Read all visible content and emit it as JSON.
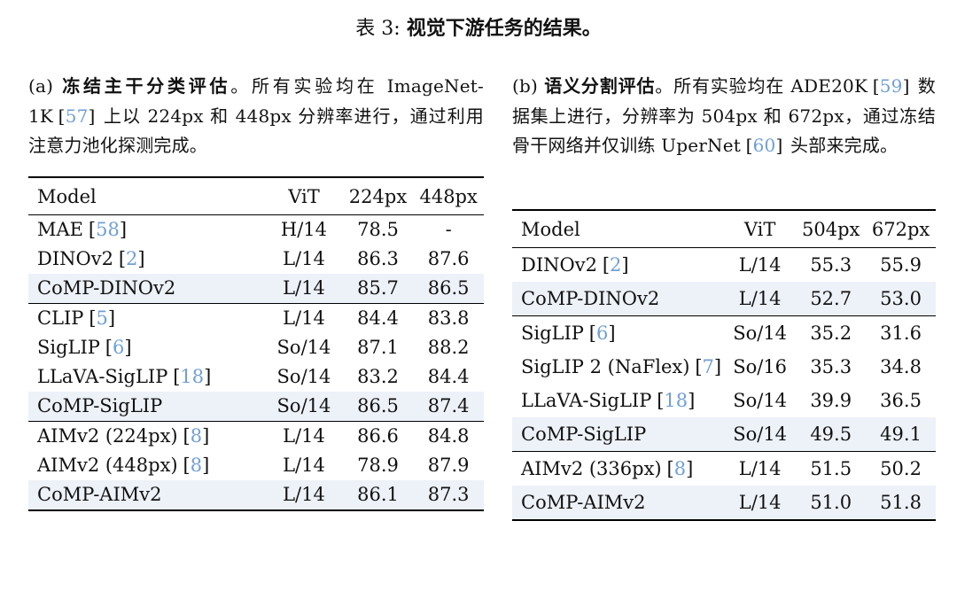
{
  "title": {
    "prefix": "表 3:",
    "text": "视觉下游任务的结果。"
  },
  "colors": {
    "link": "#6f9fd6",
    "highlight": "#edf1f8",
    "rule": "#000000",
    "ink": "#111111"
  },
  "panel_a": {
    "caption": {
      "label": "(a)",
      "heading": "冻结主干分类评估",
      "body_1": "。所有实验均在 ImageNet-1K",
      "cite_1": "57",
      "body_2": " 上以 224px 和 448px 分辨率进行，通过利用注意力池化探测完成。"
    },
    "table": {
      "headers": [
        "Model",
        "ViT",
        "224px",
        "448px"
      ],
      "groups": [
        {
          "rows": [
            {
              "model": "MAE",
              "cite": "58",
              "vit": "H/14",
              "res1": "78.5",
              "res2": "-",
              "highlight": false
            },
            {
              "model": "DINOv2",
              "cite": "2",
              "vit": "L/14",
              "res1": "86.3",
              "res2": "87.6",
              "highlight": false
            },
            {
              "model": "CoMP-DINOv2",
              "cite": "",
              "vit": "L/14",
              "res1": "85.7",
              "res2": "86.5",
              "highlight": true
            }
          ]
        },
        {
          "rows": [
            {
              "model": "CLIP",
              "cite": "5",
              "vit": "L/14",
              "res1": "84.4",
              "res2": "83.8",
              "highlight": false
            },
            {
              "model": "SigLIP",
              "cite": "6",
              "vit": "So/14",
              "res1": "87.1",
              "res2": "88.2",
              "highlight": false
            },
            {
              "model": "LLaVA-SigLIP",
              "cite": "18",
              "vit": "So/14",
              "res1": "83.2",
              "res2": "84.4",
              "highlight": false
            },
            {
              "model": "CoMP-SigLIP",
              "cite": "",
              "vit": "So/14",
              "res1": "86.5",
              "res2": "87.4",
              "highlight": true
            }
          ]
        },
        {
          "rows": [
            {
              "model": "AIMv2 (224px)",
              "cite": "8",
              "vit": "L/14",
              "res1": "86.6",
              "res2": "84.8",
              "highlight": false
            },
            {
              "model": "AIMv2 (448px)",
              "cite": "8",
              "vit": "L/14",
              "res1": "78.9",
              "res2": "87.9",
              "highlight": false
            },
            {
              "model": "CoMP-AIMv2",
              "cite": "",
              "vit": "L/14",
              "res1": "86.1",
              "res2": "87.3",
              "highlight": true
            }
          ]
        }
      ]
    }
  },
  "panel_b": {
    "caption": {
      "label": "(b)",
      "heading": "语义分割评估",
      "body_1": "。所有实验均在 ADE20K",
      "cite_1": "59",
      "body_2": " 数据集上进行，分辨率为 504px 和 672px，通过冻结骨干网络并仅训练 UperNet",
      "cite_2": "60",
      "body_3": " 头部来完成。"
    },
    "table": {
      "headers": [
        "Model",
        "ViT",
        "504px",
        "672px"
      ],
      "groups": [
        {
          "rows": [
            {
              "model": "DINOv2",
              "cite": "2",
              "vit": "L/14",
              "res1": "55.3",
              "res2": "55.9",
              "highlight": false
            },
            {
              "model": "CoMP-DINOv2",
              "cite": "",
              "vit": "L/14",
              "res1": "52.7",
              "res2": "53.0",
              "highlight": true
            }
          ]
        },
        {
          "rows": [
            {
              "model": "SigLIP",
              "cite": "6",
              "vit": "So/14",
              "res1": "35.2",
              "res2": "31.6",
              "highlight": false
            },
            {
              "model": "SigLIP 2 (NaFlex)",
              "cite": "7",
              "vit": "So/16",
              "res1": "35.3",
              "res2": "34.8",
              "highlight": false
            },
            {
              "model": "LLaVA-SigLIP",
              "cite": "18",
              "vit": "So/14",
              "res1": "39.9",
              "res2": "36.5",
              "highlight": false
            },
            {
              "model": "CoMP-SigLIP",
              "cite": "",
              "vit": "So/14",
              "res1": "49.5",
              "res2": "49.1",
              "highlight": true
            }
          ]
        },
        {
          "rows": [
            {
              "model": "AIMv2 (336px)",
              "cite": "8",
              "vit": "L/14",
              "res1": "51.5",
              "res2": "50.2",
              "highlight": false
            },
            {
              "model": "CoMP-AIMv2",
              "cite": "",
              "vit": "L/14",
              "res1": "51.0",
              "res2": "51.8",
              "highlight": true
            }
          ]
        }
      ]
    }
  }
}
